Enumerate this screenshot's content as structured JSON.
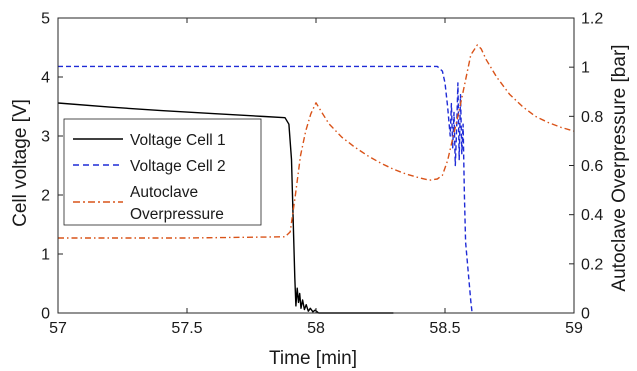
{
  "chart_data": {
    "type": "line",
    "xlabel": "Time [min]",
    "ylabel_left": "Cell voltage [V]",
    "ylabel_right": "Autoclave Overpressure [bar]",
    "xlim": [
      57,
      59
    ],
    "ylim_left": [
      0,
      5
    ],
    "ylim_right": [
      0,
      1.2
    ],
    "x_ticks": [
      "57",
      "57.5",
      "58",
      "58.5",
      "59"
    ],
    "y_left_ticks": [
      "0",
      "1",
      "2",
      "3",
      "4",
      "5"
    ],
    "y_right_ticks": [
      "0",
      "0.2",
      "0.4",
      "0.6",
      "0.8",
      "1",
      "1.2"
    ],
    "grid": false,
    "legend_position": "left, middle",
    "legend": [
      {
        "series": "v1",
        "lines": [
          "Voltage Cell 1"
        ]
      },
      {
        "series": "v2",
        "lines": [
          "Voltage Cell 2"
        ]
      },
      {
        "series": "p",
        "lines": [
          "Autoclave",
          "Overpressure"
        ]
      }
    ],
    "series": [
      {
        "id": "v1",
        "name": "Voltage Cell 1",
        "axis": "left",
        "color": "#000000",
        "style": "solid",
        "points": [
          [
            57.0,
            3.56
          ],
          [
            57.2,
            3.49
          ],
          [
            57.4,
            3.43
          ],
          [
            57.6,
            3.38
          ],
          [
            57.8,
            3.33
          ],
          [
            57.88,
            3.31
          ],
          [
            57.895,
            3.2
          ],
          [
            57.905,
            2.6
          ],
          [
            57.912,
            1.5
          ],
          [
            57.918,
            0.6
          ],
          [
            57.922,
            0.12
          ],
          [
            57.927,
            0.42
          ],
          [
            57.932,
            0.18
          ],
          [
            57.937,
            0.33
          ],
          [
            57.942,
            0.08
          ],
          [
            57.948,
            0.22
          ],
          [
            57.955,
            0.06
          ],
          [
            57.962,
            0.14
          ],
          [
            57.97,
            0.03
          ],
          [
            57.978,
            0.08
          ],
          [
            57.988,
            0.02
          ],
          [
            57.997,
            0.05
          ],
          [
            58.01,
            0.0
          ],
          [
            58.3,
            0.0
          ]
        ]
      },
      {
        "id": "v2",
        "name": "Voltage Cell 2",
        "axis": "left",
        "color": "#1f2bd6",
        "style": "dashed",
        "points": [
          [
            57.0,
            4.18
          ],
          [
            58.3,
            4.18
          ],
          [
            58.47,
            4.18
          ],
          [
            58.49,
            4.1
          ],
          [
            58.5,
            3.9
          ],
          [
            58.51,
            3.5
          ],
          [
            58.52,
            3.0
          ],
          [
            58.525,
            3.55
          ],
          [
            58.53,
            2.8
          ],
          [
            58.535,
            3.4
          ],
          [
            58.54,
            2.5
          ],
          [
            58.545,
            3.1
          ],
          [
            58.55,
            3.9
          ],
          [
            58.555,
            2.6
          ],
          [
            58.56,
            3.7
          ],
          [
            58.565,
            2.7
          ],
          [
            58.57,
            3.2
          ],
          [
            58.575,
            2.0
          ],
          [
            58.58,
            1.2
          ],
          [
            58.59,
            0.7
          ],
          [
            58.6,
            0.2
          ],
          [
            58.605,
            0.0
          ]
        ]
      },
      {
        "id": "p",
        "name": "Autoclave Overpressure",
        "axis": "right",
        "color": "#d95319",
        "style": "dashdot",
        "points": [
          [
            57.0,
            0.305
          ],
          [
            57.5,
            0.305
          ],
          [
            57.88,
            0.31
          ],
          [
            57.9,
            0.33
          ],
          [
            57.92,
            0.48
          ],
          [
            57.94,
            0.64
          ],
          [
            57.96,
            0.74
          ],
          [
            57.98,
            0.81
          ],
          [
            58.0,
            0.855
          ],
          [
            58.02,
            0.82
          ],
          [
            58.05,
            0.77
          ],
          [
            58.1,
            0.715
          ],
          [
            58.15,
            0.675
          ],
          [
            58.2,
            0.64
          ],
          [
            58.25,
            0.61
          ],
          [
            58.3,
            0.585
          ],
          [
            58.35,
            0.565
          ],
          [
            58.4,
            0.55
          ],
          [
            58.44,
            0.54
          ],
          [
            58.47,
            0.545
          ],
          [
            58.49,
            0.56
          ],
          [
            58.51,
            0.62
          ],
          [
            58.53,
            0.71
          ],
          [
            58.55,
            0.8
          ],
          [
            58.57,
            0.9
          ],
          [
            58.6,
            1.05
          ],
          [
            58.625,
            1.09
          ],
          [
            58.64,
            1.075
          ],
          [
            58.66,
            1.03
          ],
          [
            58.7,
            0.96
          ],
          [
            58.75,
            0.89
          ],
          [
            58.8,
            0.84
          ],
          [
            58.85,
            0.8
          ],
          [
            58.9,
            0.775
          ],
          [
            58.95,
            0.755
          ],
          [
            59.0,
            0.74
          ]
        ]
      }
    ]
  }
}
